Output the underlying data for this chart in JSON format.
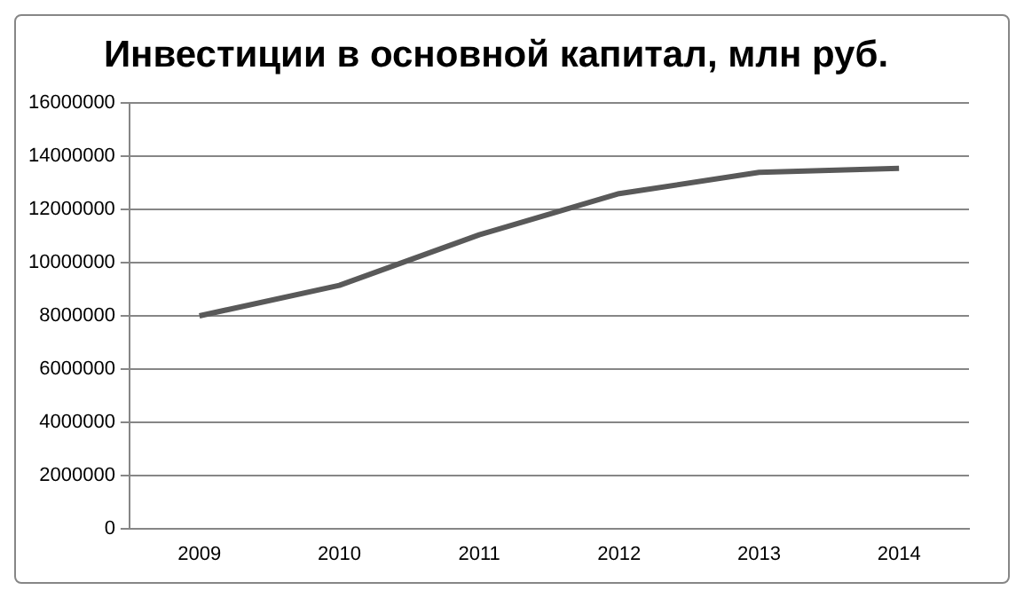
{
  "chart_data": {
    "type": "line",
    "title": "Инвестиции в основной капитал, млн руб.",
    "categories": [
      "2009",
      "2010",
      "2011",
      "2012",
      "2013",
      "2014"
    ],
    "series": [
      {
        "color": "#595959",
        "values": [
          8000000,
          9150000,
          11050000,
          12600000,
          13400000,
          13550000
        ]
      }
    ],
    "ylim": [
      0,
      16000000
    ],
    "yticks": [
      0,
      2000000,
      4000000,
      6000000,
      8000000,
      10000000,
      12000000,
      14000000,
      16000000
    ],
    "grid": "y",
    "legend": false,
    "marker": "none",
    "line_style": "solid"
  }
}
